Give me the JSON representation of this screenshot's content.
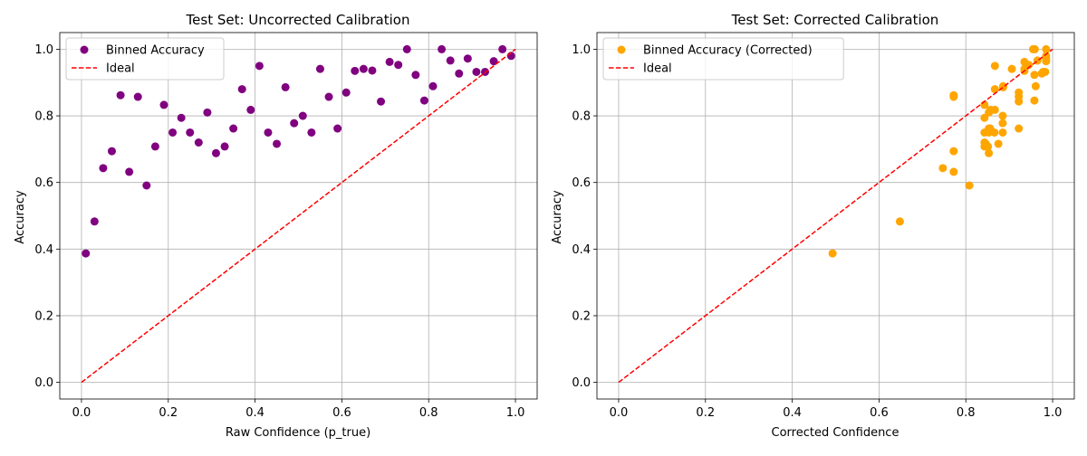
{
  "chart_data": [
    {
      "type": "scatter",
      "title": "Test Set: Uncorrected Calibration",
      "xlabel": "Raw Confidence (p_true)",
      "ylabel": "Accuracy",
      "xlim": [
        -0.05,
        1.05
      ],
      "ylim": [
        -0.05,
        1.05
      ],
      "xticks": [
        "0.0",
        "0.2",
        "0.4",
        "0.6",
        "0.8",
        "1.0"
      ],
      "yticks": [
        "0.0",
        "0.2",
        "0.4",
        "0.6",
        "0.8",
        "1.0"
      ],
      "grid": true,
      "legend_position": "top-left",
      "series": [
        {
          "name": "Binned Accuracy",
          "kind": "scatter",
          "color": "#800080",
          "x": [
            0.01,
            0.03,
            0.05,
            0.07,
            0.09,
            0.11,
            0.13,
            0.15,
            0.17,
            0.19,
            0.21,
            0.23,
            0.25,
            0.27,
            0.29,
            0.31,
            0.33,
            0.35,
            0.37,
            0.39,
            0.41,
            0.43,
            0.45,
            0.47,
            0.49,
            0.51,
            0.53,
            0.55,
            0.57,
            0.59,
            0.61,
            0.63,
            0.65,
            0.67,
            0.69,
            0.71,
            0.73,
            0.75,
            0.77,
            0.79,
            0.81,
            0.83,
            0.85,
            0.87,
            0.89,
            0.91,
            0.93,
            0.95,
            0.97,
            0.99
          ],
          "y": [
            0.387,
            0.483,
            0.643,
            0.694,
            0.862,
            0.632,
            0.857,
            0.591,
            0.708,
            0.833,
            0.75,
            0.794,
            0.75,
            0.72,
            0.81,
            0.688,
            0.708,
            0.762,
            0.88,
            0.818,
            0.95,
            0.75,
            0.716,
            0.886,
            0.778,
            0.8,
            0.75,
            0.941,
            0.857,
            0.762,
            0.87,
            0.935,
            0.941,
            0.936,
            0.843,
            0.962,
            0.953,
            1.0,
            0.923,
            0.846,
            0.889,
            1.0,
            0.966,
            0.927,
            0.972,
            0.932,
            0.932,
            0.964,
            1.0,
            0.98
          ]
        },
        {
          "name": "Ideal",
          "kind": "line",
          "style": "dashed",
          "color": "#ff0000",
          "x": [
            0,
            1
          ],
          "y": [
            0,
            1
          ]
        }
      ]
    },
    {
      "type": "scatter",
      "title": "Test Set: Corrected Calibration",
      "xlabel": "Corrected Confidence",
      "ylabel": "Accuracy",
      "xlim": [
        -0.05,
        1.05
      ],
      "ylim": [
        -0.05,
        1.05
      ],
      "xticks": [
        "0.0",
        "0.2",
        "0.4",
        "0.6",
        "0.8",
        "1.0"
      ],
      "yticks": [
        "0.0",
        "0.2",
        "0.4",
        "0.6",
        "0.8",
        "1.0"
      ],
      "grid": true,
      "legend_position": "top-left",
      "series": [
        {
          "name": "Binned Accuracy (Corrected)",
          "kind": "scatter",
          "color": "#ffa500",
          "x": [
            0.493,
            0.648,
            0.747,
            0.772,
            0.772,
            0.772,
            0.772,
            0.808,
            0.843,
            0.843,
            0.843,
            0.843,
            0.843,
            0.846,
            0.851,
            0.853,
            0.853,
            0.853,
            0.853,
            0.856,
            0.857,
            0.866,
            0.867,
            0.867,
            0.867,
            0.875,
            0.885,
            0.885,
            0.885,
            0.886,
            0.886,
            0.906,
            0.922,
            0.922,
            0.922,
            0.922,
            0.935,
            0.935,
            0.935,
            0.945,
            0.955,
            0.958,
            0.958,
            0.959,
            0.961,
            0.965,
            0.975,
            0.978,
            0.983,
            0.985,
            0.985,
            0.985,
            0.985
          ],
          "y": [
            0.387,
            0.483,
            0.643,
            0.632,
            0.694,
            0.857,
            0.862,
            0.591,
            0.708,
            0.72,
            0.75,
            0.794,
            0.833,
            0.716,
            0.708,
            0.688,
            0.75,
            0.762,
            0.81,
            0.762,
            0.818,
            0.75,
            0.88,
            0.95,
            0.818,
            0.716,
            0.75,
            0.778,
            0.8,
            0.886,
            0.889,
            0.941,
            0.762,
            0.857,
            0.87,
            0.843,
            0.935,
            0.941,
            0.962,
            0.953,
            1.0,
            0.846,
            0.923,
            1.0,
            0.889,
            0.966,
            0.927,
            0.932,
            0.932,
            0.964,
            0.972,
            0.98,
            1.0
          ]
        },
        {
          "name": "Ideal",
          "kind": "line",
          "style": "dashed",
          "color": "#ff0000",
          "x": [
            0,
            1
          ],
          "y": [
            0,
            1
          ]
        }
      ]
    }
  ]
}
